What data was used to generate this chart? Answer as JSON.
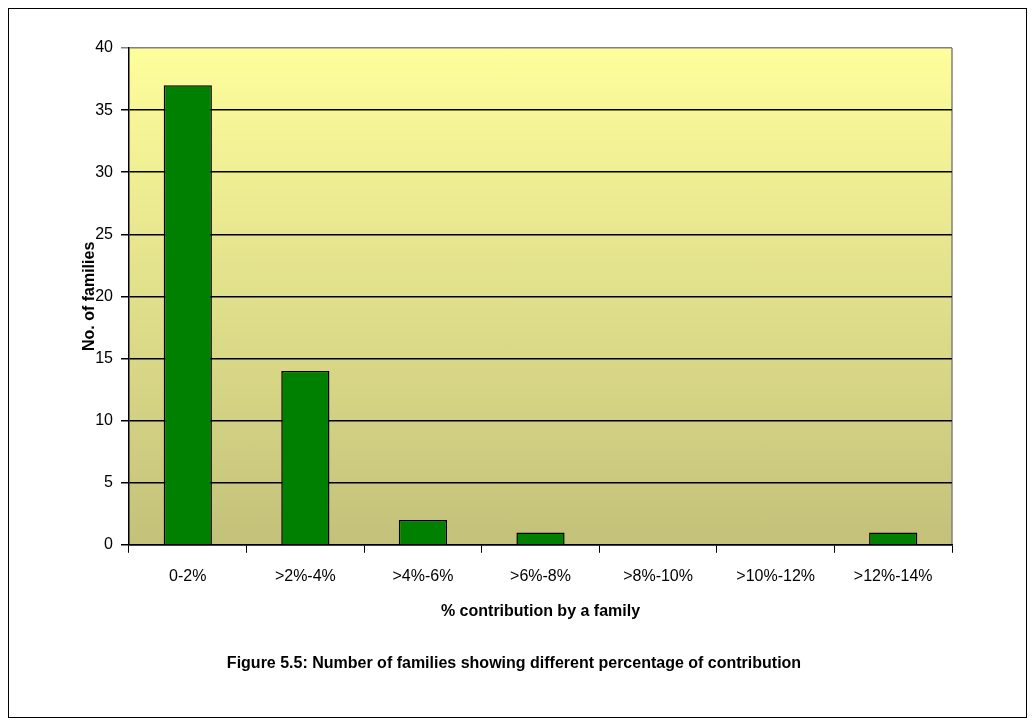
{
  "chart_data": {
    "type": "bar",
    "title": "Figure 5.5: Number of families showing different percentage of contribution",
    "xlabel": "% contribution by a family",
    "ylabel": "No. of families",
    "categories": [
      "0-2%",
      ">2%-4%",
      ">4%-6%",
      ">6%-8%",
      ">8%-10%",
      ">10%-12%",
      ">12%-14%"
    ],
    "values": [
      37,
      14,
      2,
      1,
      0,
      0,
      1
    ],
    "color": "#008000",
    "ylim": [
      0,
      40
    ],
    "yticks": [
      0,
      5,
      10,
      15,
      20,
      25,
      30,
      35,
      40
    ],
    "grid": "y"
  }
}
